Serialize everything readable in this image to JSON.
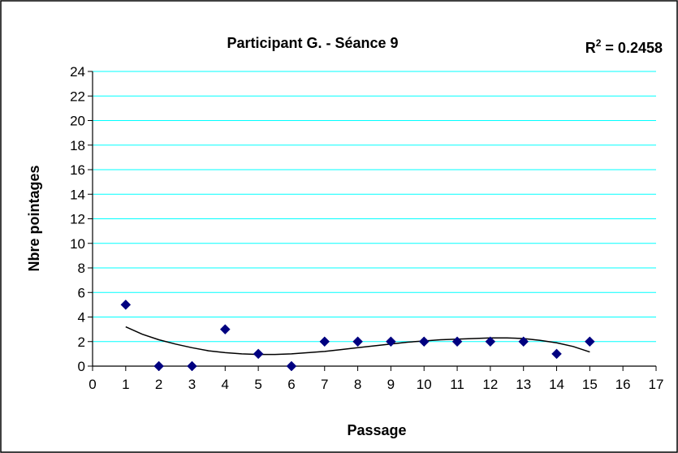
{
  "chart_data": {
    "type": "scatter",
    "title": "Participant G. - Séance 9",
    "r2_label": "R",
    "r2_exp": "2",
    "r2_value": " = 0.2458",
    "xlabel": "Passage",
    "ylabel": "Nbre pointages",
    "xlim": [
      0,
      17
    ],
    "ylim": [
      0,
      24
    ],
    "x_ticks": [
      "0",
      "1",
      "2",
      "3",
      "4",
      "5",
      "6",
      "7",
      "8",
      "9",
      "10",
      "11",
      "12",
      "13",
      "14",
      "15",
      "16",
      "17"
    ],
    "y_ticks": [
      "0",
      "2",
      "4",
      "6",
      "8",
      "10",
      "12",
      "14",
      "16",
      "18",
      "20",
      "22",
      "24"
    ],
    "grid": "horizontal",
    "series": [
      {
        "marker": "diamond",
        "color": "#000080",
        "x": [
          1,
          2,
          3,
          4,
          5,
          6,
          7,
          8,
          9,
          10,
          11,
          12,
          13,
          14,
          15
        ],
        "y": [
          5,
          0,
          0,
          3,
          1,
          0,
          2,
          2,
          2,
          2,
          2,
          2,
          2,
          1,
          2
        ]
      }
    ],
    "trendline": {
      "type": "polynomial",
      "color": "#000000",
      "x": [
        1,
        1.5,
        2,
        2.5,
        3,
        3.5,
        4,
        4.5,
        5,
        5.5,
        6,
        6.5,
        7,
        7.5,
        8,
        8.5,
        9,
        9.5,
        10,
        10.5,
        11,
        11.5,
        12,
        12.5,
        13,
        13.5,
        14,
        14.5,
        15
      ],
      "y": [
        3.2,
        2.6,
        2.15,
        1.8,
        1.5,
        1.25,
        1.1,
        1.0,
        0.95,
        0.95,
        1.0,
        1.1,
        1.2,
        1.35,
        1.5,
        1.65,
        1.8,
        1.95,
        2.05,
        2.15,
        2.2,
        2.25,
        2.3,
        2.3,
        2.25,
        2.1,
        1.9,
        1.6,
        1.15
      ]
    },
    "colors": {
      "gridline": "#00FFFF",
      "axis": "#000000",
      "frame": "#000000"
    }
  }
}
